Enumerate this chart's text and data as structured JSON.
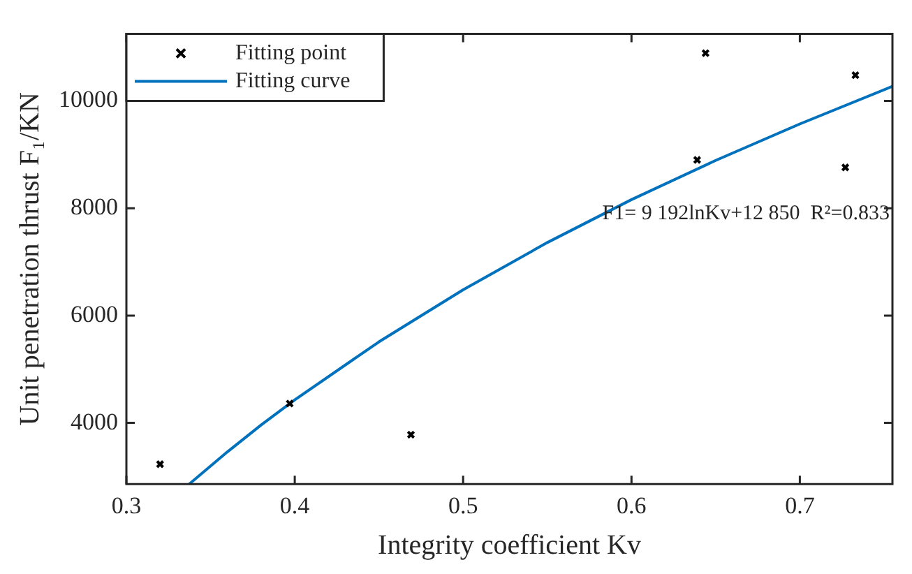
{
  "chart_data": {
    "type": "scatter",
    "xlabel": "Integrity coefficient Kv",
    "ylabel": "Unit penetration thrust F₁/KN",
    "xlim": [
      0.3,
      0.755
    ],
    "xticks": [
      0.3,
      0.4,
      0.5,
      0.6,
      0.7
    ],
    "ylim": [
      2860,
      11250
    ],
    "yticks": [
      4000,
      6000,
      8000,
      10000
    ],
    "grid": false,
    "legend": "top left",
    "marker": "cross",
    "series": [
      {
        "name": "Fitting point",
        "color": "#000000",
        "x": [
          0.32,
          0.397,
          0.469,
          0.639,
          0.644,
          0.727,
          0.733
        ],
        "values": [
          3230,
          4360,
          3780,
          8900,
          10890,
          8760,
          10480
        ]
      },
      {
        "name": "Fitting curve",
        "type": "line",
        "color": "#0072bd",
        "line_style": "solid",
        "marker": "none",
        "x": [
          0.3373,
          0.34,
          0.36,
          0.38,
          0.4,
          0.45,
          0.5,
          0.55,
          0.6,
          0.65,
          0.7,
          0.755
        ],
        "values": [
          2860,
          2930,
          3460,
          3960,
          4430,
          5510,
          6480,
          7360,
          8160,
          8890,
          9570,
          10270
        ]
      }
    ],
    "annotations": [
      "F1= 9 192lnKv+12 850  R²=0.833"
    ]
  }
}
